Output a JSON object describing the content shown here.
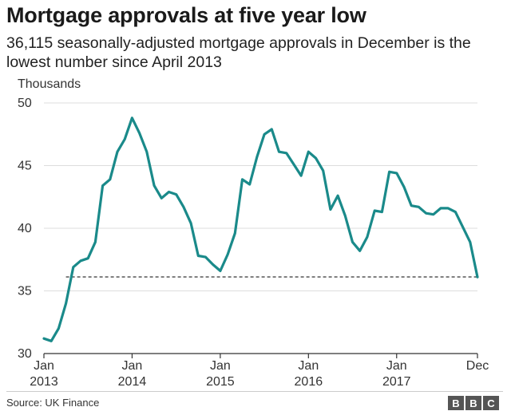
{
  "header": {
    "title": "Mortgage approvals at five year low",
    "subtitle": "36,115 seasonally-adjusted mortgage approvals in December is the lowest number since April 2013"
  },
  "footer": {
    "source": "Source: UK Finance",
    "logo_text": "BBC"
  },
  "colors": {
    "line": "#1a8a8a",
    "grid": "#dddddd",
    "axis": "#333333",
    "reference_line": "#333333"
  },
  "chart_data": {
    "type": "line",
    "ylabel": "Thousands",
    "ylim": [
      30,
      50
    ],
    "yticks": [
      30,
      35,
      40,
      45,
      50
    ],
    "xlim": [
      "2013-01",
      "2017-12"
    ],
    "xtick_labels": [
      {
        "x": "2013-01",
        "lines": [
          "Jan",
          "2013"
        ]
      },
      {
        "x": "2014-01",
        "lines": [
          "Jan",
          "2014"
        ]
      },
      {
        "x": "2015-01",
        "lines": [
          "Jan",
          "2015"
        ]
      },
      {
        "x": "2016-01",
        "lines": [
          "Jan",
          "2016"
        ]
      },
      {
        "x": "2017-01",
        "lines": [
          "Jan",
          "2017"
        ]
      },
      {
        "x": "2017-12",
        "lines": [
          "Dec"
        ]
      }
    ],
    "grid": "horizontal",
    "reference_line": {
      "y": 36.115,
      "from": "2013-04",
      "to": "2017-12",
      "style": "dashed"
    },
    "series": [
      {
        "x": [
          "2013-01",
          "2013-02",
          "2013-03",
          "2013-04",
          "2013-05",
          "2013-06",
          "2013-07",
          "2013-08",
          "2013-09",
          "2013-10",
          "2013-11",
          "2013-12",
          "2014-01",
          "2014-02",
          "2014-03",
          "2014-04",
          "2014-05",
          "2014-06",
          "2014-07",
          "2014-08",
          "2014-09",
          "2014-10",
          "2014-11",
          "2014-12",
          "2015-01",
          "2015-02",
          "2015-03",
          "2015-04",
          "2015-05",
          "2015-06",
          "2015-07",
          "2015-08",
          "2015-09",
          "2015-10",
          "2015-11",
          "2015-12",
          "2016-01",
          "2016-02",
          "2016-03",
          "2016-04",
          "2016-05",
          "2016-06",
          "2016-07",
          "2016-08",
          "2016-09",
          "2016-10",
          "2016-11",
          "2016-12",
          "2017-01",
          "2017-02",
          "2017-03",
          "2017-04",
          "2017-05",
          "2017-06",
          "2017-07",
          "2017-08",
          "2017-09",
          "2017-10",
          "2017-11",
          "2017-12"
        ],
        "values": [
          31.2,
          31.0,
          32.0,
          34.0,
          36.9,
          37.4,
          37.6,
          38.9,
          43.4,
          43.9,
          46.1,
          47.1,
          48.8,
          47.6,
          46.1,
          43.4,
          42.4,
          42.9,
          42.7,
          41.7,
          40.4,
          37.8,
          37.7,
          37.1,
          36.6,
          37.9,
          39.6,
          43.9,
          43.5,
          45.7,
          47.5,
          47.9,
          46.1,
          46.0,
          45.1,
          44.2,
          46.1,
          45.6,
          44.6,
          41.5,
          42.6,
          41.0,
          38.9,
          38.2,
          39.3,
          41.4,
          41.3,
          44.5,
          44.4,
          43.3,
          41.8,
          41.7,
          41.2,
          41.1,
          41.6,
          41.6,
          41.3,
          40.1,
          38.9,
          36.1
        ]
      }
    ]
  }
}
